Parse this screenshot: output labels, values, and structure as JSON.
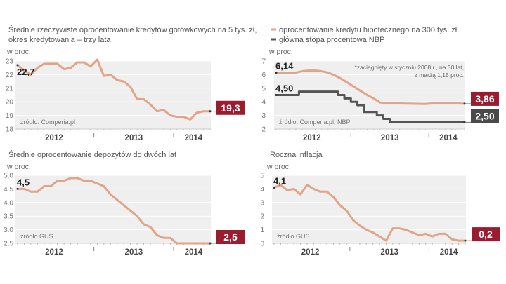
{
  "colors": {
    "salmon": "#e2a487",
    "gray": "#555555",
    "red_box": "#9b1b2f",
    "gray_box": "#4a4a4a",
    "plot_bg": "#efefef"
  },
  "chart_data": [
    {
      "type": "line",
      "title_lines": [
        "Średnie rzeczywiste oprocentowanie kredytów gotówkowych na 5 tys. zł,",
        "okres kredytowania – trzy lata"
      ],
      "ylabel": "w proc.",
      "source": "źródło: Comperia.pl",
      "ylim": [
        18,
        23
      ],
      "yticks": [
        "18",
        "19",
        "20",
        "21",
        "22",
        "23"
      ],
      "x_tick_labels": [
        "2012",
        "2013",
        "2014"
      ],
      "x_range": [
        "2012-01",
        "2014-06"
      ],
      "series": [
        {
          "values": [
            22.7,
            22.3,
            22.0,
            22.5,
            22.8,
            22.8,
            22.8,
            22.4,
            22.5,
            22.9,
            22.9,
            22.6,
            23.1,
            21.9,
            22.0,
            21.6,
            21.5,
            21.1,
            20.2,
            20.2,
            19.8,
            19.3,
            19.4,
            19.0,
            18.9,
            18.9,
            18.7,
            19.2,
            19.3,
            19.3
          ],
          "color": "salmon",
          "start_label": "22,7",
          "end_label": "19,3",
          "end_box": "red_box"
        }
      ]
    },
    {
      "type": "line",
      "legend": [
        "oprocentowanie kredytu hipotecznego na 300 tys. zł",
        "główna stopa procentowa NBP"
      ],
      "note_lines": [
        "*zaciągnięty w styczniu 2008 r., na 30 lat,",
        "z marżą  1,15 proc."
      ],
      "ylabel": "w proc.",
      "source": "źródło: Comperia.pl, NBP",
      "ylim": [
        2,
        7
      ],
      "yticks": [
        "2",
        "3",
        "4",
        "5",
        "6",
        "7"
      ],
      "x_tick_labels": [
        "2012",
        "2013",
        "2014"
      ],
      "x_range": [
        "2012-01",
        "2014-06"
      ],
      "series": [
        {
          "name": "oprocentowanie kredytu hipotecznego na 300 tys. zł",
          "values": [
            6.14,
            6.1,
            6.1,
            6.15,
            6.25,
            6.3,
            6.3,
            6.25,
            6.15,
            5.95,
            5.7,
            5.4,
            5.1,
            4.8,
            4.5,
            4.25,
            3.95,
            3.9,
            3.9,
            3.88,
            3.87,
            3.86,
            3.85,
            3.84,
            3.88,
            3.9,
            3.9,
            3.9,
            3.88,
            3.86
          ],
          "color": "salmon",
          "start_label": "6,14",
          "end_label": "3,86",
          "end_box": "red_box"
        },
        {
          "name": "główna stopa procentowa NBP",
          "step": true,
          "values": [
            4.5,
            4.5,
            4.5,
            4.5,
            4.75,
            4.75,
            4.75,
            4.75,
            4.75,
            4.75,
            4.5,
            4.25,
            4.0,
            3.75,
            3.25,
            3.25,
            3.0,
            2.75,
            2.5,
            2.5,
            2.5,
            2.5,
            2.5,
            2.5,
            2.5,
            2.5,
            2.5,
            2.5,
            2.5,
            2.5
          ],
          "color": "gray",
          "start_label": "4,50",
          "end_label": "2,50",
          "end_box": "gray_box"
        }
      ]
    },
    {
      "type": "line",
      "title_lines": [
        "Średnie oprocentowanie depozytów do dwóch lat"
      ],
      "ylabel": "w proc.",
      "source": "źródło GUS",
      "ylim": [
        2.5,
        5.0
      ],
      "yticks": [
        "2.5",
        "3.0",
        "3.5",
        "4.0",
        "4.5",
        "5.0"
      ],
      "x_tick_labels": [
        "2012",
        "2013",
        "2014"
      ],
      "x_range": [
        "2012-01",
        "2014-06"
      ],
      "series": [
        {
          "values": [
            4.5,
            4.5,
            4.4,
            4.4,
            4.6,
            4.6,
            4.8,
            4.8,
            4.9,
            4.9,
            4.8,
            4.8,
            4.7,
            4.6,
            4.3,
            4.1,
            3.9,
            3.7,
            3.5,
            3.2,
            3.1,
            2.8,
            2.7,
            2.7,
            2.5,
            2.5,
            2.5,
            2.5,
            2.5,
            2.5
          ],
          "color": "salmon",
          "start_label": "4,5",
          "end_label": "2,5",
          "end_box": "red_box"
        }
      ]
    },
    {
      "type": "line",
      "title_lines": [
        "Roczna inflacja"
      ],
      "ylabel": "w proc.",
      "source": "źródło GUS",
      "ylim": [
        0,
        5
      ],
      "yticks": [
        "0",
        "1",
        "2",
        "3",
        "4",
        "5"
      ],
      "x_tick_labels": [
        "2012",
        "2013",
        "2014"
      ],
      "x_range": [
        "2012-01",
        "2014-06"
      ],
      "series": [
        {
          "values": [
            4.1,
            4.3,
            3.9,
            4.0,
            3.6,
            4.3,
            4.0,
            3.8,
            3.8,
            3.4,
            2.8,
            2.4,
            1.7,
            1.3,
            1.0,
            0.8,
            0.5,
            0.2,
            1.1,
            1.1,
            1.0,
            0.8,
            0.6,
            0.7,
            0.5,
            0.7,
            0.7,
            0.3,
            0.2,
            0.2
          ],
          "color": "salmon",
          "start_label": "4,1",
          "end_label": "0,2",
          "end_box": "red_box"
        }
      ]
    }
  ]
}
